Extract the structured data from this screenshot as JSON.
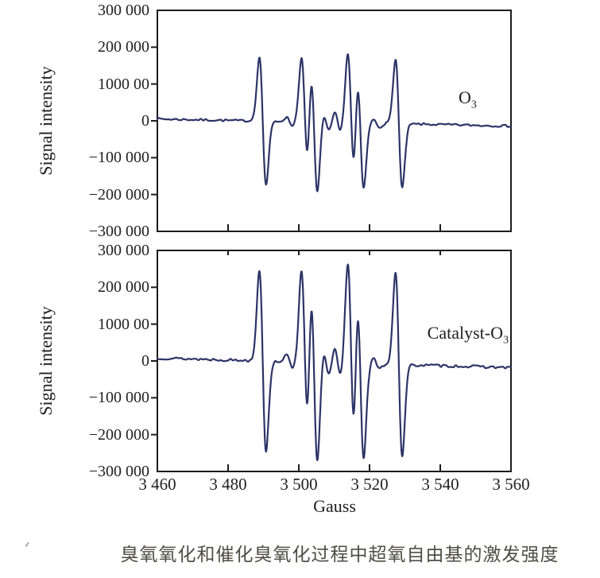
{
  "figure": {
    "ylabel": "Signal intensity",
    "xlabel": "Gauss",
    "caption": "臭氧氧化和催化臭氧化过程中超氧自由基的激发强度"
  },
  "colors": {
    "line": "#2c3467",
    "axis": "#1c1c1c",
    "text": "#1f1f1f",
    "caption": "#4e4e44"
  },
  "chart_data": [
    {
      "type": "line",
      "id": "o3",
      "title": "EPR spectrum during ozonation",
      "label_main": "O",
      "label_sub": "3",
      "xlabel": "Gauss",
      "ylabel": "Signal intensity",
      "xlim": [
        3460,
        3560
      ],
      "ylim": [
        -300000,
        300000
      ],
      "x_ticks": [
        3460,
        3480,
        3500,
        3520,
        3540,
        3560
      ],
      "x_tick_labels": [
        "3 460",
        "3 480",
        "3 500",
        "3 520",
        "3 540",
        "3 560"
      ],
      "y_ticks": [
        300000,
        200000,
        100000,
        0,
        -100000,
        -200000,
        -300000
      ],
      "y_tick_labels": [
        "300 000",
        "200 000",
        "1000 00",
        "0",
        "−100 000",
        "−200 000",
        "−300 000"
      ],
      "grid": false,
      "baseline_drift_start": 5000,
      "baseline_drift_end": -14000,
      "noise_amplitude": 3000,
      "noise_seed": 7,
      "peaks": [
        {
          "center_gauss": 3489.8,
          "amplitude": 172000,
          "sigma_gauss": 0.95
        },
        {
          "center_gauss": 3497.4,
          "amplitude": 11000,
          "sigma_gauss": 0.9
        },
        {
          "center_gauss": 3501.7,
          "amplitude": 172000,
          "sigma_gauss": 0.95
        },
        {
          "center_gauss": 3504.3,
          "amplitude": 186000,
          "sigma_gauss": 0.95
        },
        {
          "center_gauss": 3507.7,
          "amplitude": 23000,
          "sigma_gauss": 0.85
        },
        {
          "center_gauss": 3511.0,
          "amplitude": 26000,
          "sigma_gauss": 0.85
        },
        {
          "center_gauss": 3514.8,
          "amplitude": 186000,
          "sigma_gauss": 0.95
        },
        {
          "center_gauss": 3517.4,
          "amplitude": 176000,
          "sigma_gauss": 0.95
        },
        {
          "center_gauss": 3522.0,
          "amplitude": 10000,
          "sigma_gauss": 0.85
        },
        {
          "center_gauss": 3528.3,
          "amplitude": 174000,
          "sigma_gauss": 0.95
        }
      ]
    },
    {
      "type": "line",
      "id": "catalyst-o3",
      "title": "EPR spectrum during catalytic ozonation",
      "label_main": "Catalyst-O",
      "label_sub": "3",
      "xlabel": "Gauss",
      "ylabel": "Signal intensity",
      "xlim": [
        3460,
        3560
      ],
      "ylim": [
        -300000,
        300000
      ],
      "x_ticks": [
        3460,
        3480,
        3500,
        3520,
        3540,
        3560
      ],
      "x_tick_labels": [
        "3 460",
        "3 480",
        "3 500",
        "3 520",
        "3 540",
        "3 560"
      ],
      "y_ticks": [
        300000,
        200000,
        100000,
        0,
        -100000,
        -200000,
        -300000
      ],
      "y_tick_labels": [
        "300 000",
        "200 000",
        "1000 00",
        "0",
        "−100 000",
        "−200 000",
        "−300 000"
      ],
      "grid": false,
      "baseline_drift_start": 8000,
      "baseline_drift_end": -18000,
      "noise_amplitude": 3600,
      "noise_seed": 13,
      "peaks": [
        {
          "center_gauss": 3489.8,
          "amplitude": 246000,
          "sigma_gauss": 0.95
        },
        {
          "center_gauss": 3497.4,
          "amplitude": 16000,
          "sigma_gauss": 0.9
        },
        {
          "center_gauss": 3501.7,
          "amplitude": 246000,
          "sigma_gauss": 0.95
        },
        {
          "center_gauss": 3504.3,
          "amplitude": 266000,
          "sigma_gauss": 0.95
        },
        {
          "center_gauss": 3507.7,
          "amplitude": 33000,
          "sigma_gauss": 0.85
        },
        {
          "center_gauss": 3511.0,
          "amplitude": 37000,
          "sigma_gauss": 0.85
        },
        {
          "center_gauss": 3514.8,
          "amplitude": 268000,
          "sigma_gauss": 0.95
        },
        {
          "center_gauss": 3517.4,
          "amplitude": 252000,
          "sigma_gauss": 0.95
        },
        {
          "center_gauss": 3522.0,
          "amplitude": 14000,
          "sigma_gauss": 0.85
        },
        {
          "center_gauss": 3528.3,
          "amplitude": 250000,
          "sigma_gauss": 0.95
        }
      ]
    }
  ]
}
